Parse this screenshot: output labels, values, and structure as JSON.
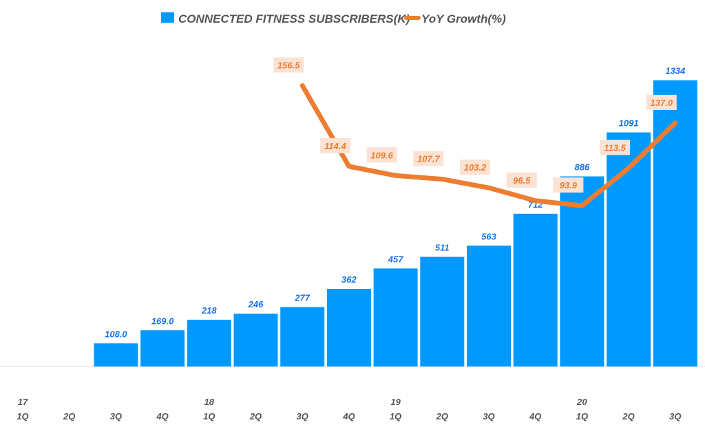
{
  "chart_data": {
    "type": "bar+line",
    "title": "",
    "categories": [
      "1Q",
      "2Q",
      "3Q",
      "4Q",
      "1Q",
      "2Q",
      "3Q",
      "4Q",
      "1Q",
      "2Q",
      "3Q",
      "4Q",
      "1Q",
      "2Q",
      "3Q"
    ],
    "year_labels": [
      "17",
      "",
      "",
      "",
      "18",
      "",
      "",
      "",
      "19",
      "",
      "",
      "",
      "20",
      "",
      ""
    ],
    "series": [
      {
        "name": "CONNECTED FITNESS SUBSCRIBERS(K)",
        "type": "bar",
        "axis": "primary",
        "values": [
          null,
          null,
          108.0,
          169.0,
          218,
          246,
          277,
          362,
          457,
          511,
          563,
          712,
          886,
          1091,
          1334
        ],
        "labels": [
          "",
          "",
          "108.0",
          "169.0",
          "218",
          "246",
          "277",
          "362",
          "457",
          "511",
          "563",
          "712",
          "886",
          "1091",
          "1334"
        ]
      },
      {
        "name": "YoY Growth(%)",
        "type": "line",
        "axis": "secondary",
        "values": [
          null,
          null,
          null,
          null,
          null,
          null,
          156.5,
          114.4,
          109.6,
          107.7,
          103.2,
          96.5,
          93.9,
          113.5,
          137.0
        ],
        "labels": [
          "",
          "",
          "",
          "",
          "",
          "",
          "156.5",
          "114.4",
          "109.6",
          "107.7",
          "103.2",
          "96.5",
          "93.9",
          "113.5",
          "137.0"
        ]
      }
    ],
    "ylim": [
      0,
      1644
    ],
    "y2lim": [
      10,
      194
    ],
    "grid": false,
    "legend": "top",
    "colors": {
      "bar": "#0099ff",
      "bar_label": "#1a73e8",
      "line": "#ed7d31",
      "line_label_bg": "#fbe2d3",
      "axis_text": "#555555"
    }
  }
}
